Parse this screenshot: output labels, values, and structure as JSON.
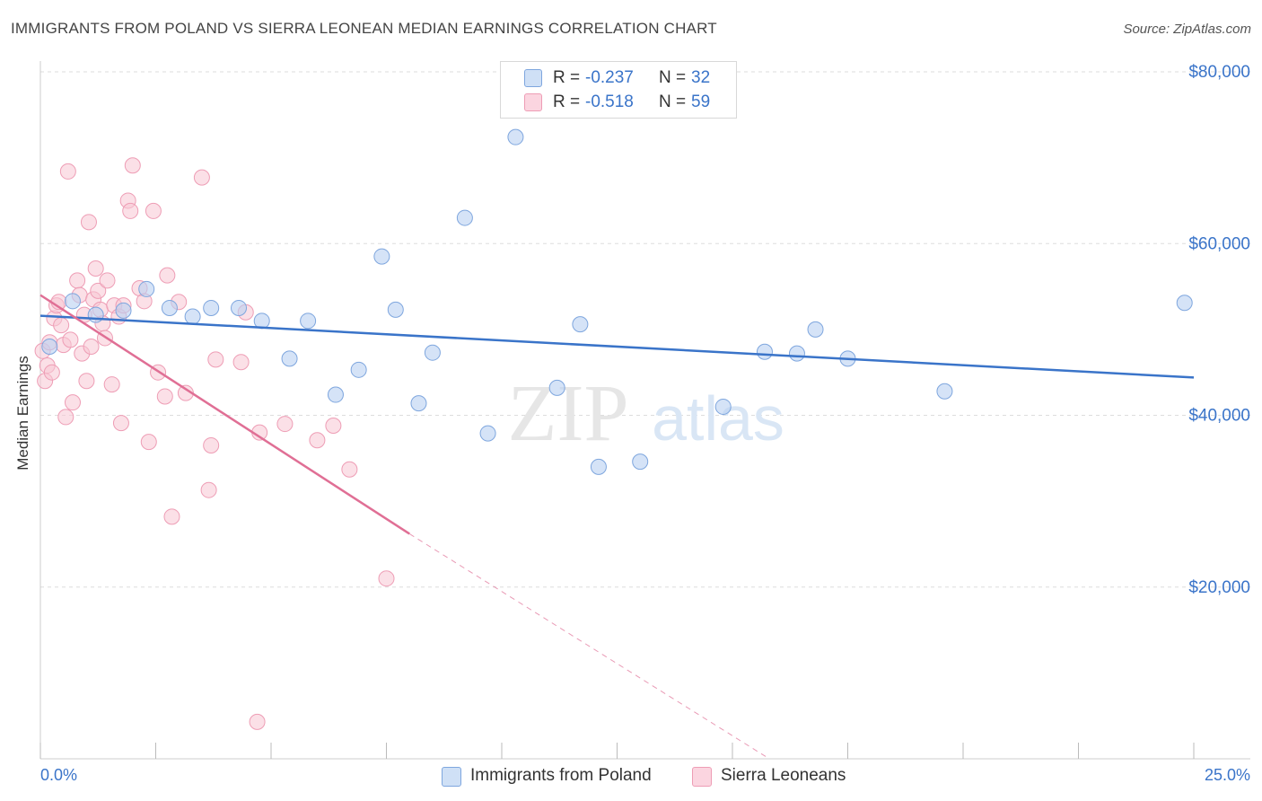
{
  "title": "IMMIGRANTS FROM POLAND VS SIERRA LEONEAN MEDIAN EARNINGS CORRELATION CHART",
  "source": "Source: ZipAtlas.com",
  "watermark": {
    "zip": "ZIP",
    "atlas": "atlas"
  },
  "legend": {
    "r_label": "R =",
    "n_label": "N =",
    "series": [
      {
        "r": "-0.237",
        "n": "32"
      },
      {
        "r": "-0.518",
        "n": "59"
      }
    ]
  },
  "colors": {
    "poland_fill": "#b9d1f1",
    "poland_stroke": "#7ea6de",
    "poland_line": "#3a74c9",
    "sierra_fill": "#f8c6d4",
    "sierra_stroke": "#ee9db5",
    "sierra_line": "#e06f95",
    "axis_text": "#3a74c9",
    "grid": "#dddddd"
  },
  "chart_data": {
    "type": "scatter",
    "title": "IMMIGRANTS FROM POLAND VS SIERRA LEONEAN MEDIAN EARNINGS CORRELATION CHART",
    "xlabel": "",
    "ylabel": "Median Earnings",
    "xlim": [
      0,
      25
    ],
    "ylim": [
      0,
      80000
    ],
    "x_tick_labels": [
      "0.0%",
      "25.0%"
    ],
    "y_ticks": [
      20000,
      40000,
      60000,
      80000
    ],
    "y_tick_labels": [
      "$20,000",
      "$40,000",
      "$60,000",
      "$80,000"
    ],
    "grid": true,
    "legend_position": "top-center",
    "series": [
      {
        "name": "Immigrants from Poland",
        "r": -0.237,
        "n": 32,
        "trend": {
          "x": [
            0,
            25
          ],
          "y": [
            51600,
            44400
          ]
        },
        "points": [
          [
            0.2,
            48000
          ],
          [
            0.7,
            53300
          ],
          [
            1.2,
            51700
          ],
          [
            1.8,
            52200
          ],
          [
            2.3,
            54700
          ],
          [
            2.8,
            52500
          ],
          [
            3.3,
            51500
          ],
          [
            3.7,
            52500
          ],
          [
            4.3,
            52500
          ],
          [
            4.8,
            51000
          ],
          [
            5.4,
            46600
          ],
          [
            5.8,
            51000
          ],
          [
            6.4,
            42400
          ],
          [
            6.9,
            45300
          ],
          [
            7.4,
            58500
          ],
          [
            7.7,
            52300
          ],
          [
            8.2,
            41400
          ],
          [
            8.5,
            47300
          ],
          [
            9.2,
            63000
          ],
          [
            9.7,
            37900
          ],
          [
            10.3,
            72400
          ],
          [
            11.2,
            43200
          ],
          [
            11.7,
            50600
          ],
          [
            12.1,
            34000
          ],
          [
            13.0,
            34600
          ],
          [
            14.8,
            41000
          ],
          [
            15.7,
            47400
          ],
          [
            16.4,
            47200
          ],
          [
            16.8,
            50000
          ],
          [
            17.5,
            46600
          ],
          [
            19.6,
            42800
          ],
          [
            24.8,
            53100
          ]
        ]
      },
      {
        "name": "Sierra Leoneans",
        "r": -0.518,
        "n": 59,
        "trend": {
          "x": [
            0,
            8.0
          ],
          "y": [
            54000,
            26200
          ]
        },
        "trend_dashed": {
          "x": [
            8.0,
            15.8
          ],
          "y": [
            26200,
            0
          ]
        },
        "points": [
          [
            0.05,
            47500
          ],
          [
            0.1,
            44000
          ],
          [
            0.15,
            45800
          ],
          [
            0.2,
            48500
          ],
          [
            0.25,
            45000
          ],
          [
            0.3,
            51300
          ],
          [
            0.35,
            52800
          ],
          [
            0.4,
            53200
          ],
          [
            0.45,
            50500
          ],
          [
            0.5,
            48200
          ],
          [
            0.55,
            39800
          ],
          [
            0.6,
            68400
          ],
          [
            0.65,
            48800
          ],
          [
            0.7,
            41500
          ],
          [
            0.8,
            55700
          ],
          [
            0.85,
            54000
          ],
          [
            0.9,
            47200
          ],
          [
            1.0,
            44000
          ],
          [
            1.05,
            62500
          ],
          [
            1.1,
            48000
          ],
          [
            1.15,
            53500
          ],
          [
            1.2,
            57100
          ],
          [
            1.25,
            54500
          ],
          [
            1.3,
            52300
          ],
          [
            1.35,
            50700
          ],
          [
            1.4,
            49000
          ],
          [
            1.45,
            55700
          ],
          [
            1.55,
            43600
          ],
          [
            1.6,
            52800
          ],
          [
            1.7,
            51500
          ],
          [
            1.75,
            39100
          ],
          [
            1.8,
            52800
          ],
          [
            1.9,
            65000
          ],
          [
            1.95,
            63800
          ],
          [
            2.0,
            69100
          ],
          [
            2.15,
            54800
          ],
          [
            2.25,
            53300
          ],
          [
            2.35,
            36900
          ],
          [
            2.45,
            63800
          ],
          [
            2.55,
            45000
          ],
          [
            2.7,
            42200
          ],
          [
            2.75,
            56300
          ],
          [
            2.85,
            28200
          ],
          [
            3.0,
            53200
          ],
          [
            3.15,
            42600
          ],
          [
            3.5,
            67700
          ],
          [
            3.65,
            31300
          ],
          [
            3.7,
            36500
          ],
          [
            3.8,
            46500
          ],
          [
            4.35,
            46200
          ],
          [
            4.45,
            52000
          ],
          [
            4.7,
            4300
          ],
          [
            4.75,
            38000
          ],
          [
            5.3,
            39000
          ],
          [
            6.0,
            37100
          ],
          [
            6.35,
            38800
          ],
          [
            6.7,
            33700
          ],
          [
            7.5,
            21000
          ],
          [
            0.95,
            51700
          ]
        ]
      }
    ]
  },
  "bottom_legend": [
    {
      "label": "Immigrants from Poland"
    },
    {
      "label": "Sierra Leoneans"
    }
  ]
}
